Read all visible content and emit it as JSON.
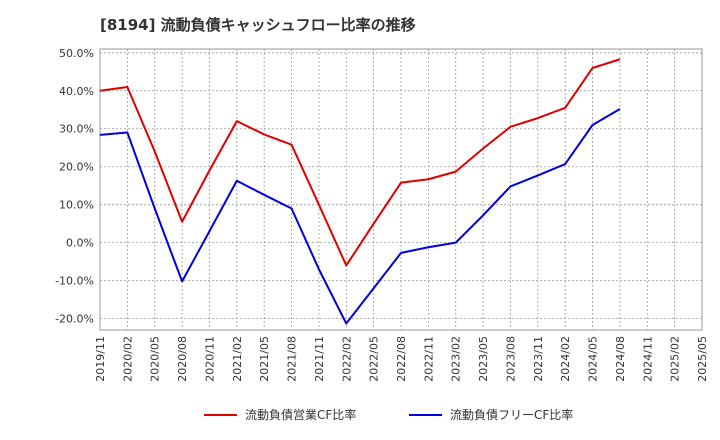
{
  "chart_data": {
    "type": "line",
    "title": "[8194]  流動負債キャッシュフロー比率の推移",
    "xlabel": "",
    "ylabel": "",
    "x": [
      "2019/11",
      "2020/02",
      "2020/05",
      "2020/08",
      "2020/11",
      "2021/02",
      "2021/05",
      "2021/08",
      "2021/11",
      "2022/02",
      "2022/05",
      "2022/08",
      "2022/11",
      "2023/02",
      "2023/05",
      "2023/08",
      "2023/11",
      "2024/02",
      "2024/05",
      "2024/08",
      "2024/11",
      "2025/02",
      "2025/05"
    ],
    "ylim": [
      -23,
      51
    ],
    "yticks": [
      -20,
      -10,
      0,
      10,
      20,
      30,
      40,
      50
    ],
    "ytick_labels": [
      "-20.0%",
      "-10.0%",
      "0.0%",
      "10.0%",
      "20.0%",
      "30.0%",
      "40.0%",
      "50.0%"
    ],
    "grid": true,
    "legend_position": "bottom",
    "series": [
      {
        "name": "流動負債営業CF比率",
        "color": "#e00000",
        "values": [
          40.0,
          41.0,
          24.0,
          5.5,
          19.0,
          32.0,
          28.5,
          25.8,
          10.0,
          -6.0,
          5.0,
          15.8,
          16.7,
          18.7,
          24.8,
          30.5,
          32.8,
          35.5,
          46.0,
          48.3,
          null,
          null,
          null
        ]
      },
      {
        "name": "流動負債フリーCF比率",
        "color": "#0000e0",
        "values": [
          28.4,
          29.0,
          9.0,
          -10.2,
          3.0,
          16.3,
          12.6,
          9.0,
          -7.0,
          -21.3,
          -12.0,
          -2.7,
          -1.2,
          0.0,
          7.2,
          14.8,
          17.7,
          20.7,
          31.0,
          35.2,
          null,
          null,
          null
        ]
      }
    ]
  }
}
